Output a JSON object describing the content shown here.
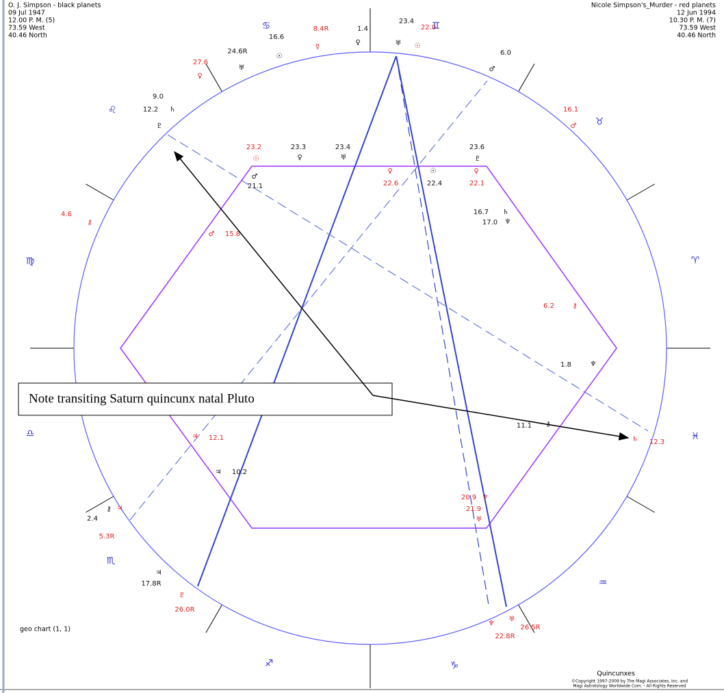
{
  "header_left": [
    "O. J. Simpson - black planets",
    "09 Jul 1947",
    "12.00 P. M. (5)",
    "73.59 West",
    "40.46 North"
  ],
  "header_right": [
    "Nicole Simpson's_Murder - red planets",
    "12 Jun 1994",
    "10.30 P. M. (7)",
    "73.59 West",
    "40.46 North"
  ],
  "chart_label": "geo chart (1, 1)",
  "footer": {
    "title": "Quincunxes",
    "copyright": "©Copyright 1997-2009 by The Magi Associates, Inc. and",
    "rights": "Magi Astrotology Worldwide Com. - All Rights Reserved"
  },
  "note": "Note transiting Saturn quincunx natal Pluto",
  "zodiac": [
    "♋",
    "♊",
    "♉",
    "♈",
    "♓",
    "♒",
    "♑",
    "♐",
    "♏",
    "♎",
    "♍",
    "♌"
  ],
  "labels": [
    {
      "text": "16.6",
      "color": "black"
    },
    {
      "text": "☉",
      "color": "black"
    },
    {
      "text": "24.6R",
      "color": "black"
    },
    {
      "text": "♅",
      "color": "black"
    },
    {
      "text": "27.6",
      "color": "red"
    },
    {
      "text": "♀",
      "color": "red"
    },
    {
      "text": "8.4R",
      "color": "red"
    },
    {
      "text": "☿",
      "color": "red"
    },
    {
      "text": "1.4",
      "color": "black"
    },
    {
      "text": "♀",
      "color": "black"
    },
    {
      "text": "23.4",
      "color": "black"
    },
    {
      "text": "♅",
      "color": "black"
    },
    {
      "text": "22.0",
      "color": "red"
    },
    {
      "text": "☉",
      "color": "red"
    },
    {
      "text": "6.0",
      "color": "black"
    },
    {
      "text": "♂",
      "color": "black"
    },
    {
      "text": "16.1",
      "color": "red"
    },
    {
      "text": "♂",
      "color": "red"
    },
    {
      "text": "9.0",
      "color": "black"
    },
    {
      "text": "12.2",
      "color": "black"
    },
    {
      "text": "♄",
      "color": "black"
    },
    {
      "text": "♇",
      "color": "black"
    },
    {
      "text": "23.2",
      "color": "red"
    },
    {
      "text": "☉",
      "color": "red"
    },
    {
      "text": "23.3",
      "color": "black"
    },
    {
      "text": "♀",
      "color": "black"
    },
    {
      "text": "23.4",
      "color": "black"
    },
    {
      "text": "♅",
      "color": "black"
    },
    {
      "text": "23.6",
      "color": "black"
    },
    {
      "text": "♇",
      "color": "black"
    },
    {
      "text": "♂",
      "color": "black"
    },
    {
      "text": "21.1",
      "color": "black"
    },
    {
      "text": "♀",
      "color": "red"
    },
    {
      "text": "22.6",
      "color": "red"
    },
    {
      "text": "☉",
      "color": "black"
    },
    {
      "text": "22.4",
      "color": "black"
    },
    {
      "text": "♀",
      "color": "red"
    },
    {
      "text": "22.1",
      "color": "red"
    },
    {
      "text": "16.7",
      "color": "black"
    },
    {
      "text": "♄",
      "color": "black"
    },
    {
      "text": "17.0",
      "color": "black"
    },
    {
      "text": "♆",
      "color": "black"
    },
    {
      "text": "4.6",
      "color": "red"
    },
    {
      "text": "⚷",
      "color": "red"
    },
    {
      "text": "♂",
      "color": "red"
    },
    {
      "text": "15.8",
      "color": "red"
    },
    {
      "text": "6.2",
      "color": "red"
    },
    {
      "text": "⚷",
      "color": "red"
    },
    {
      "text": "1.8",
      "color": "black"
    },
    {
      "text": "♆",
      "color": "black"
    },
    {
      "text": "♄",
      "color": "red"
    },
    {
      "text": "12.3",
      "color": "red"
    },
    {
      "text": "11.1",
      "color": "black"
    },
    {
      "text": "⚷",
      "color": "black"
    },
    {
      "text": "♃",
      "color": "red"
    },
    {
      "text": "12.1",
      "color": "red"
    },
    {
      "text": "♃",
      "color": "black"
    },
    {
      "text": "10.2",
      "color": "black"
    },
    {
      "text": "20.9",
      "color": "red"
    },
    {
      "text": "♆",
      "color": "red"
    },
    {
      "text": "21.9",
      "color": "red"
    },
    {
      "text": "♅",
      "color": "red"
    },
    {
      "text": "2.4",
      "color": "black"
    },
    {
      "text": "⚷",
      "color": "black"
    },
    {
      "text": "♃",
      "color": "red"
    },
    {
      "text": "5.3R",
      "color": "red"
    },
    {
      "text": "♃",
      "color": "black"
    },
    {
      "text": "17.8R",
      "color": "black"
    },
    {
      "text": "♇",
      "color": "red"
    },
    {
      "text": "26.0R",
      "color": "red"
    },
    {
      "text": "♆",
      "color": "red"
    },
    {
      "text": "22.8R",
      "color": "red"
    },
    {
      "text": "♅",
      "color": "red"
    },
    {
      "text": "26.5R",
      "color": "red"
    }
  ]
}
